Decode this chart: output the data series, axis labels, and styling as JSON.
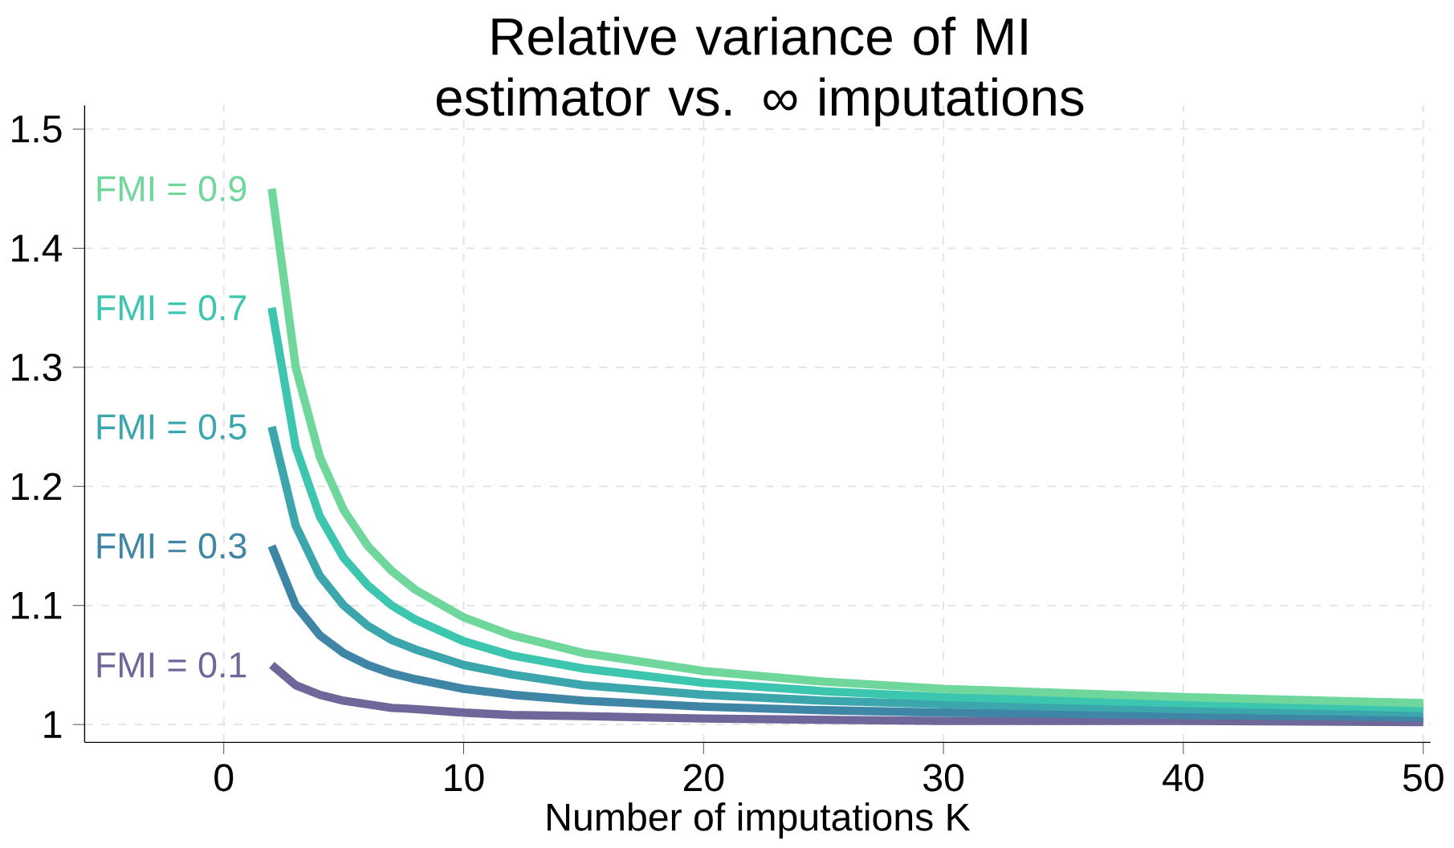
{
  "chart_data": {
    "type": "line",
    "title": "Relative variance of MI estimator vs. ∞ imputations",
    "xlabel": "Number of imputations K",
    "x": [
      2,
      3,
      4,
      5,
      6,
      7,
      8,
      10,
      12,
      15,
      20,
      25,
      30,
      40,
      50
    ],
    "series": [
      {
        "name": "FMI = 0.1",
        "color": "#6f6699",
        "values": [
          1.05,
          1.033,
          1.025,
          1.02,
          1.017,
          1.014,
          1.013,
          1.01,
          1.008,
          1.007,
          1.005,
          1.004,
          1.003,
          1.003,
          1.002
        ]
      },
      {
        "name": "FMI = 0.3",
        "color": "#3f86a6",
        "values": [
          1.15,
          1.1,
          1.075,
          1.06,
          1.05,
          1.043,
          1.038,
          1.03,
          1.025,
          1.02,
          1.015,
          1.012,
          1.01,
          1.008,
          1.006
        ]
      },
      {
        "name": "FMI = 0.5",
        "color": "#3ba7ad",
        "values": [
          1.25,
          1.167,
          1.125,
          1.1,
          1.083,
          1.071,
          1.063,
          1.05,
          1.042,
          1.033,
          1.025,
          1.02,
          1.017,
          1.013,
          1.01
        ]
      },
      {
        "name": "FMI = 0.7",
        "color": "#3cc6b0",
        "values": [
          1.35,
          1.233,
          1.175,
          1.14,
          1.117,
          1.1,
          1.088,
          1.07,
          1.058,
          1.047,
          1.035,
          1.028,
          1.023,
          1.018,
          1.014
        ]
      },
      {
        "name": "FMI = 0.9",
        "color": "#6fd79c",
        "values": [
          1.45,
          1.3,
          1.225,
          1.18,
          1.15,
          1.129,
          1.113,
          1.09,
          1.075,
          1.06,
          1.045,
          1.036,
          1.03,
          1.023,
          1.018
        ]
      }
    ],
    "xlim": [
      -5.8,
      50.3
    ],
    "ylim": [
      0.985,
      1.52
    ],
    "xticks": [
      0,
      10,
      20,
      30,
      40,
      50
    ],
    "yticks": [
      {
        "value": 1,
        "label": "1"
      },
      1.1,
      1.2,
      1.3,
      1.4,
      1.5
    ],
    "grid": true,
    "legend": false,
    "line_style": "solid",
    "marker": "none"
  }
}
